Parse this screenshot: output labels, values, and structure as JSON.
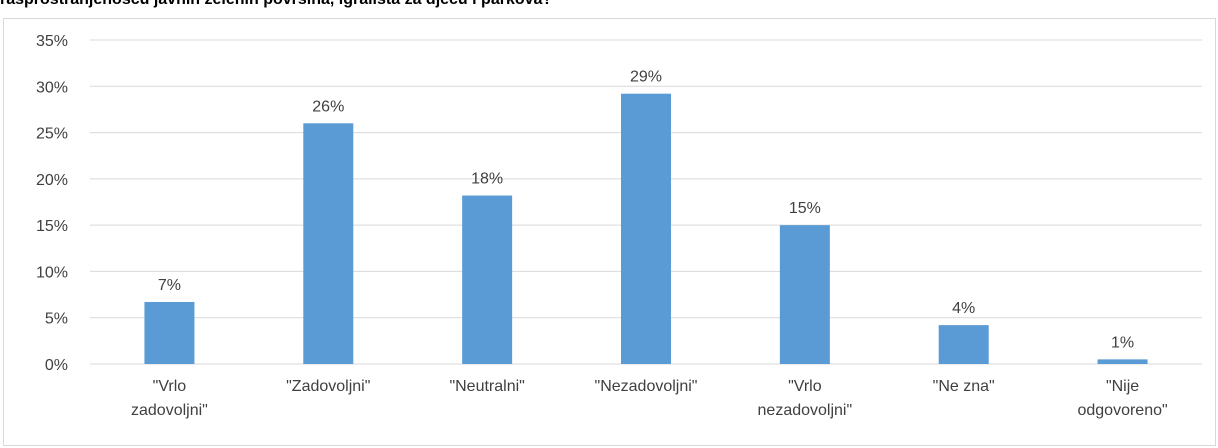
{
  "title": "rasprostranjenošću javnih zelenih površina, igrališta za djecu i parkova?",
  "chart_data": {
    "type": "bar",
    "categories": [
      [
        "\"Vrlo",
        "zadovoljni\""
      ],
      [
        "\"Zadovoljni\""
      ],
      [
        "\"Neutralni\""
      ],
      [
        "\"Nezadovoljni\""
      ],
      [
        "\"Vrlo",
        "nezadovoljni\""
      ],
      [
        "\"Ne zna\""
      ],
      [
        "\"Nije",
        "odgovoreno\""
      ]
    ],
    "values": [
      6.7,
      26.0,
      18.2,
      29.2,
      15.0,
      4.2,
      0.5
    ],
    "data_labels": [
      "7%",
      "26%",
      "18%",
      "29%",
      "15%",
      "4%",
      "1%"
    ],
    "ylim": [
      0,
      35
    ],
    "yticks": [
      "0%",
      "5%",
      "10%",
      "15%",
      "20%",
      "25%",
      "30%",
      "35%"
    ],
    "grid": true,
    "bar_color": "#5b9bd5",
    "grid_color": "#d9d9d9"
  }
}
